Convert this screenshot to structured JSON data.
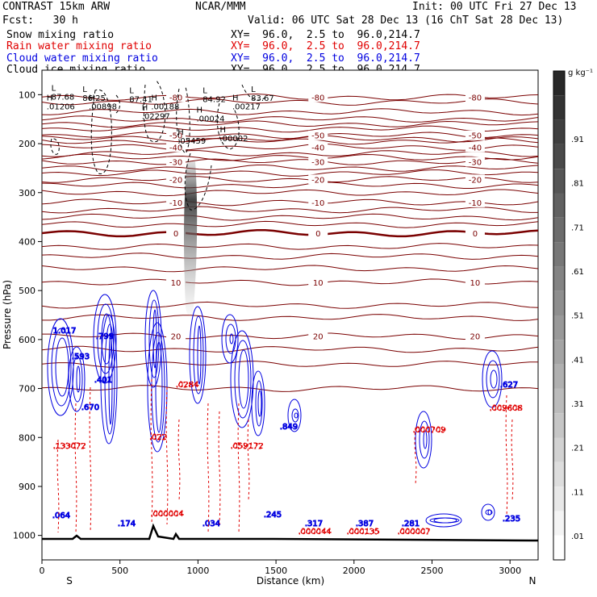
{
  "header": {
    "title": "CONTRAST 15km ARW",
    "org": "NCAR/MMM",
    "init": "Init: 00 UTC Fri 27 Dec 13",
    "fcst": "Fcst:   30 h",
    "valid": "Valid: 06 UTC Sat 28 Dec 13 (16 ChT Sat 28 Dec 13)"
  },
  "fields": [
    {
      "name": "Snow mixing ratio",
      "xy": "XY=  96.0,  2.5 to  96.0,214.7",
      "color": "#000000"
    },
    {
      "name": "Rain water mixing ratio",
      "xy": "XY=  96.0,  2.5 to  96.0,214.7",
      "color": "#e00000"
    },
    {
      "name": "Cloud water mixing ratio",
      "xy": "XY=  96.0,  2.5 to  96.0,214.7",
      "color": "#0000e0"
    },
    {
      "name": "Cloud ice mixing ratio",
      "xy": "XY=  96.0,  2.5 to  96.0,214.7",
      "color": "#000000"
    }
  ],
  "colors": {
    "temp": "#7a0000",
    "rain": "#e00000",
    "cloud_water": "#0000e0",
    "cloud_ice": "#000000"
  },
  "chart_data": {
    "type": "cross-section contour",
    "xlabel": "Distance (km)",
    "ylabel": "Pressure (hPa)",
    "xlim": [
      0,
      3180
    ],
    "ylim": [
      1050,
      50
    ],
    "x_ticks": [
      0,
      500,
      1000,
      1500,
      2000,
      2500,
      3000
    ],
    "y_ticks": [
      100,
      200,
      300,
      400,
      500,
      600,
      700,
      800,
      900,
      1000
    ],
    "end_labels": [
      "S",
      "N"
    ],
    "colorbar": {
      "unit": "g kg⁻¹",
      "labels": [
        ".01",
        ".11",
        ".21",
        ".31",
        ".41",
        ".51",
        ".61",
        ".71",
        ".81",
        ".91"
      ]
    },
    "temperature_isotherms": [
      {
        "label": "-80",
        "p": 105
      },
      {
        "label": "-50",
        "p": 183
      },
      {
        "label": "-40",
        "p": 207
      },
      {
        "label": "-30",
        "p": 237
      },
      {
        "label": "-20",
        "p": 273
      },
      {
        "label": "-10",
        "p": 320
      },
      {
        "label": "0",
        "p": 383,
        "bold": true
      },
      {
        "label": "10",
        "p": 483
      },
      {
        "label": "20",
        "p": 593
      }
    ],
    "extrema_labels": [
      {
        "kind": "L",
        "value": "87.68",
        "x": 60,
        "p": 105
      },
      {
        "kind": "L",
        "value": "86.25",
        "x": 260,
        "p": 108
      },
      {
        "kind": "L",
        "value": "87.41",
        "x": 560,
        "p": 110
      },
      {
        "kind": "L",
        "value": "84.92",
        "x": 1030,
        "p": 110
      },
      {
        "kind": "L",
        "value": "83.67",
        "x": 1340,
        "p": 108
      },
      {
        "kind": "H",
        "value": ".01206",
        "x": 30,
        "p": 125
      },
      {
        "kind": "H",
        "value": ".00898",
        "x": 300,
        "p": 125
      },
      {
        "kind": "H",
        "value": ".00188",
        "x": 700,
        "p": 125
      },
      {
        "kind": "H",
        "value": ".00217",
        "x": 1220,
        "p": 125
      },
      {
        "kind": "H",
        "value": ".02297",
        "x": 640,
        "p": 145
      },
      {
        "kind": "H",
        "value": ".00024",
        "x": 990,
        "p": 150
      },
      {
        "kind": "H",
        "value": ".05459",
        "x": 870,
        "p": 195
      },
      {
        "kind": "H",
        "value": ".00002",
        "x": 1140,
        "p": 190
      }
    ],
    "cloud_water_labels": [
      "1.017",
      ".593",
      ".799",
      ".401",
      ".670",
      ".849",
      ".627",
      ".064",
      ".174",
      ".034",
      ".245",
      ".317",
      ".387",
      ".281",
      ".235"
    ],
    "rain_labels": [
      ".133072",
      ".022",
      ".059172",
      ".000004",
      ".000044",
      ".000135",
      ".000007",
      ".000709",
      ".009608",
      ".0284"
    ]
  }
}
